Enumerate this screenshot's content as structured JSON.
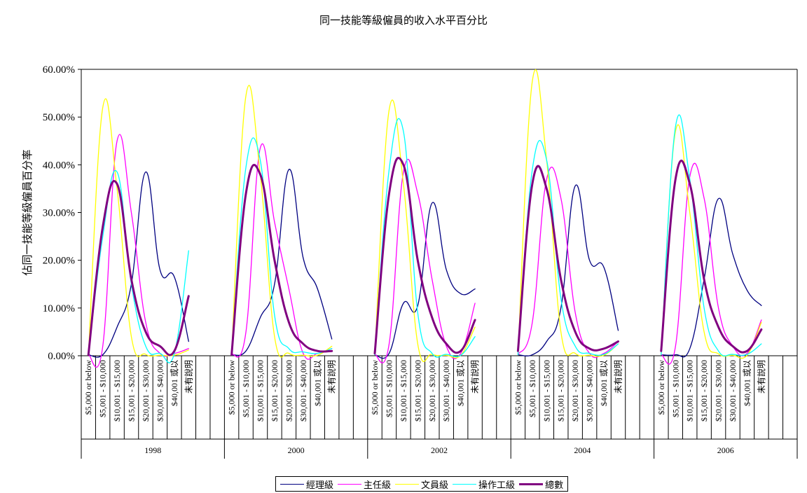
{
  "chart_data": {
    "type": "line",
    "title": "同一技能等級僱員的收入水平百分比",
    "ylabel": "佔同一技能等級僱員百分率",
    "xlabel": "",
    "ylim": [
      0,
      0.6
    ],
    "yticks": [
      "0.00%",
      "10.00%",
      "20.00%",
      "30.00%",
      "40.00%",
      "50.00%",
      "60.00%"
    ],
    "grid": false,
    "legend_position": "bottom",
    "groups": [
      "1998",
      "2000",
      "2002",
      "2004",
      "2006"
    ],
    "categories": [
      "$5,000 or below",
      "$5,001 - $10,000",
      "$10,001 - $15,000",
      "$15,001 - $20,000",
      "$20,001 - $30,000",
      "$30,001 - $40,000",
      "$40,001 或以",
      "未有說明"
    ],
    "series": [
      {
        "name": "經理級",
        "color": "#000080",
        "width": 1.3,
        "values": [
          [
            0.002,
            0.002,
            0.06,
            0.15,
            0.385,
            0.18,
            0.165,
            0.03
          ],
          [
            0.002,
            0.01,
            0.08,
            0.15,
            0.39,
            0.205,
            0.14,
            0.035
          ],
          [
            0.002,
            0.005,
            0.11,
            0.105,
            0.32,
            0.18,
            0.13,
            0.14
          ],
          [
            0.002,
            0.002,
            0.03,
            0.1,
            0.356,
            0.2,
            0.185,
            0.053
          ],
          [
            0.002,
            0.002,
            0.015,
            0.16,
            0.329,
            0.213,
            0.137,
            0.105
          ]
        ]
      },
      {
        "name": "主任級",
        "color": "#FF00FF",
        "width": 1.3,
        "values": [
          [
            0.002,
            0.02,
            0.45,
            0.3,
            0.07,
            0.005,
            0.005,
            0.015
          ],
          [
            0.002,
            0.05,
            0.435,
            0.28,
            0.14,
            0.005,
            0.005,
            0.015
          ],
          [
            0.002,
            0.025,
            0.385,
            0.34,
            0.16,
            0.02,
            0.005,
            0.11
          ],
          [
            0.002,
            0.07,
            0.37,
            0.33,
            0.09,
            0.005,
            0.005,
            0.03
          ],
          [
            0.002,
            0.02,
            0.375,
            0.33,
            0.1,
            0.02,
            0.005,
            0.075
          ]
        ]
      },
      {
        "name": "文員級",
        "color": "#FFFF00",
        "width": 1.3,
        "values": [
          [
            0.002,
            0.52,
            0.35,
            0.04,
            0.003,
            0.001,
            0.001,
            0.012
          ],
          [
            0.002,
            0.545,
            0.38,
            0.04,
            0.005,
            0.001,
            0.001,
            0.02
          ],
          [
            0.002,
            0.515,
            0.36,
            0.025,
            0.003,
            0.001,
            0.001,
            0.06
          ],
          [
            0.002,
            0.575,
            0.41,
            0.05,
            0.005,
            0.001,
            0.001,
            0.025
          ],
          [
            0.002,
            0.47,
            0.3,
            0.05,
            0.004,
            0.001,
            0.001,
            0.07
          ]
        ]
      },
      {
        "name": "操作工級",
        "color": "#00FFFF",
        "width": 1.3,
        "values": [
          [
            0.002,
            0.25,
            0.385,
            0.15,
            0.02,
            0.005,
            0.005,
            0.22
          ],
          [
            0.002,
            0.395,
            0.41,
            0.085,
            0.015,
            0.008,
            0.005,
            0.015
          ],
          [
            0.002,
            0.39,
            0.47,
            0.09,
            0.005,
            0.003,
            0.001,
            0.04
          ],
          [
            0.002,
            0.39,
            0.41,
            0.12,
            0.02,
            0.005,
            0.003,
            0.025
          ],
          [
            0.002,
            0.48,
            0.37,
            0.1,
            0.01,
            0.003,
            0.003,
            0.025
          ]
        ]
      },
      {
        "name": "總數",
        "color": "#800080",
        "width": 3,
        "values": [
          [
            0.002,
            0.27,
            0.36,
            0.16,
            0.05,
            0.02,
            0.01,
            0.125
          ],
          [
            0.002,
            0.34,
            0.38,
            0.2,
            0.07,
            0.025,
            0.01,
            0.01
          ],
          [
            0.005,
            0.34,
            0.4,
            0.2,
            0.08,
            0.025,
            0.01,
            0.075
          ],
          [
            0.01,
            0.36,
            0.35,
            0.16,
            0.05,
            0.015,
            0.015,
            0.03
          ],
          [
            0.01,
            0.37,
            0.36,
            0.16,
            0.06,
            0.02,
            0.01,
            0.055
          ]
        ]
      }
    ]
  }
}
